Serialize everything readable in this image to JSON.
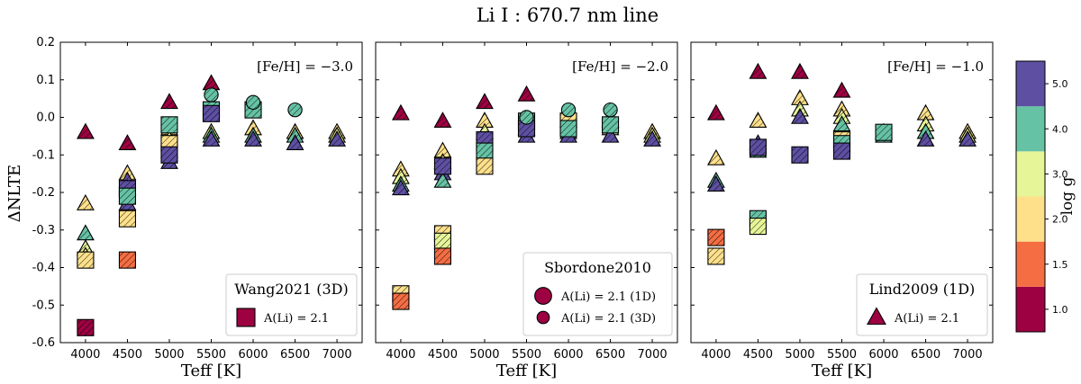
{
  "figure": {
    "title": "Li I : 670.7 nm line",
    "ylabel": "ΔNLTE",
    "xlabel": "Teff [K]"
  },
  "colorbar": {
    "label": "log g",
    "ticks": [
      "1.0",
      "1.5",
      "2.0",
      "3.0",
      "4.0",
      "5.0"
    ],
    "colors": [
      "#9e0142",
      "#f46d43",
      "#fee08b",
      "#e6f598",
      "#66c2a5",
      "#5e4fa2"
    ]
  },
  "chart_data": [
    {
      "type": "scatter",
      "panel": "left",
      "annotation": "[Fe/H] = −3.0",
      "xlabel": "Teff [K]",
      "ylabel": "ΔNLTE",
      "xlim": [
        3700,
        7300
      ],
      "ylim": [
        -0.6,
        0.2
      ],
      "x_ticks": [
        4000,
        4500,
        5000,
        5500,
        6000,
        6500,
        7000
      ],
      "y_ticks": [
        -0.6,
        -0.5,
        -0.4,
        -0.3,
        -0.2,
        -0.1,
        0.0,
        0.1,
        0.2
      ],
      "legend": {
        "title": "Wang2021 (3D)",
        "entries": [
          {
            "marker": "square",
            "label": "A(Li) = 2.1"
          }
        ]
      },
      "series": [
        {
          "marker": "triangle",
          "points": [
            {
              "x": 4000,
              "y": -0.04,
              "c": 0
            },
            {
              "x": 4000,
              "y": -0.23,
              "c": 2
            },
            {
              "x": 4000,
              "y": -0.31,
              "c": 4
            },
            {
              "x": 4000,
              "y": -0.35,
              "c": 3
            },
            {
              "x": 4000,
              "y": -0.37,
              "c": 2
            },
            {
              "x": 4500,
              "y": -0.07,
              "c": 0
            },
            {
              "x": 4500,
              "y": -0.15,
              "c": 2
            },
            {
              "x": 4500,
              "y": -0.17,
              "c": 5
            },
            {
              "x": 4500,
              "y": -0.19,
              "c": 4
            },
            {
              "x": 4500,
              "y": -0.23,
              "c": 5
            },
            {
              "x": 5000,
              "y": 0.04,
              "c": 0
            },
            {
              "x": 5000,
              "y": -0.03,
              "c": 2
            },
            {
              "x": 5000,
              "y": -0.06,
              "c": 3
            },
            {
              "x": 5000,
              "y": -0.09,
              "c": 4
            },
            {
              "x": 5000,
              "y": -0.12,
              "c": 5
            },
            {
              "x": 5500,
              "y": 0.09,
              "c": 0
            },
            {
              "x": 5500,
              "y": -0.04,
              "c": 3
            },
            {
              "x": 5500,
              "y": -0.05,
              "c": 4
            },
            {
              "x": 5500,
              "y": -0.06,
              "c": 5
            },
            {
              "x": 6000,
              "y": -0.03,
              "c": 2
            },
            {
              "x": 6000,
              "y": -0.05,
              "c": 4
            },
            {
              "x": 6000,
              "y": -0.06,
              "c": 5
            },
            {
              "x": 6500,
              "y": -0.04,
              "c": 2
            },
            {
              "x": 6500,
              "y": -0.05,
              "c": 4
            },
            {
              "x": 6500,
              "y": -0.07,
              "c": 5
            },
            {
              "x": 7000,
              "y": -0.04,
              "c": 2
            },
            {
              "x": 7000,
              "y": -0.05,
              "c": 3
            },
            {
              "x": 7000,
              "y": -0.06,
              "c": 5
            }
          ]
        },
        {
          "marker": "square",
          "points": [
            {
              "x": 4000,
              "y": -0.38,
              "c": 2
            },
            {
              "x": 4000,
              "y": -0.56,
              "c": 0
            },
            {
              "x": 4500,
              "y": -0.19,
              "c": 5
            },
            {
              "x": 4500,
              "y": -0.21,
              "c": 4
            },
            {
              "x": 4500,
              "y": -0.27,
              "c": 2
            },
            {
              "x": 4500,
              "y": -0.38,
              "c": 1
            },
            {
              "x": 5000,
              "y": -0.02,
              "c": 4
            },
            {
              "x": 5000,
              "y": -0.07,
              "c": 2
            },
            {
              "x": 5000,
              "y": -0.1,
              "c": 5
            },
            {
              "x": 5500,
              "y": 0.02,
              "c": 4
            },
            {
              "x": 5500,
              "y": 0.01,
              "c": 5
            },
            {
              "x": 6000,
              "y": 0.02,
              "c": 4
            }
          ]
        },
        {
          "marker": "circle",
          "points": [
            {
              "x": 5500,
              "y": 0.06,
              "c": 4
            },
            {
              "x": 6000,
              "y": 0.04,
              "c": 4
            },
            {
              "x": 6500,
              "y": 0.02,
              "c": 4
            }
          ]
        }
      ]
    },
    {
      "type": "scatter",
      "panel": "middle",
      "annotation": "[Fe/H] = −2.0",
      "xlabel": "Teff [K]",
      "xlim": [
        3700,
        7300
      ],
      "ylim": [
        -0.6,
        0.2
      ],
      "x_ticks": [
        4000,
        4500,
        5000,
        5500,
        6000,
        6500,
        7000
      ],
      "legend": {
        "title": "Sbordone2010",
        "entries": [
          {
            "marker": "circle-large",
            "label": "A(Li) = 2.1 (1D)"
          },
          {
            "marker": "circle",
            "label": "A(Li) = 2.1 (3D)"
          }
        ]
      },
      "series": [
        {
          "marker": "triangle",
          "points": [
            {
              "x": 4000,
              "y": 0.01,
              "c": 0
            },
            {
              "x": 4000,
              "y": -0.14,
              "c": 2
            },
            {
              "x": 4000,
              "y": -0.16,
              "c": 3
            },
            {
              "x": 4000,
              "y": -0.18,
              "c": 4
            },
            {
              "x": 4000,
              "y": -0.19,
              "c": 5
            },
            {
              "x": 4500,
              "y": -0.01,
              "c": 0
            },
            {
              "x": 4500,
              "y": -0.09,
              "c": 2
            },
            {
              "x": 4500,
              "y": -0.12,
              "c": 3
            },
            {
              "x": 4500,
              "y": -0.15,
              "c": 5
            },
            {
              "x": 4500,
              "y": -0.17,
              "c": 4
            },
            {
              "x": 5000,
              "y": 0.04,
              "c": 0
            },
            {
              "x": 5000,
              "y": -0.01,
              "c": 2
            },
            {
              "x": 5000,
              "y": -0.04,
              "c": 3
            },
            {
              "x": 5000,
              "y": -0.07,
              "c": 4
            },
            {
              "x": 5500,
              "y": 0.06,
              "c": 0
            },
            {
              "x": 5500,
              "y": -0.03,
              "c": 3
            },
            {
              "x": 5500,
              "y": -0.05,
              "c": 5
            },
            {
              "x": 6000,
              "y": -0.01,
              "c": 2
            },
            {
              "x": 6000,
              "y": -0.04,
              "c": 4
            },
            {
              "x": 6000,
              "y": -0.05,
              "c": 5
            },
            {
              "x": 6500,
              "y": -0.01,
              "c": 2
            },
            {
              "x": 6500,
              "y": -0.03,
              "c": 3
            },
            {
              "x": 6500,
              "y": -0.05,
              "c": 5
            },
            {
              "x": 7000,
              "y": -0.04,
              "c": 2
            },
            {
              "x": 7000,
              "y": -0.05,
              "c": 3
            },
            {
              "x": 7000,
              "y": -0.06,
              "c": 5
            }
          ]
        },
        {
          "marker": "square",
          "points": [
            {
              "x": 4000,
              "y": -0.47,
              "c": 2
            },
            {
              "x": 4000,
              "y": -0.49,
              "c": 1
            },
            {
              "x": 4500,
              "y": -0.13,
              "c": 5
            },
            {
              "x": 4500,
              "y": -0.31,
              "c": 2
            },
            {
              "x": 4500,
              "y": -0.33,
              "c": 3
            },
            {
              "x": 4500,
              "y": -0.37,
              "c": 1
            },
            {
              "x": 5000,
              "y": -0.06,
              "c": 5
            },
            {
              "x": 5000,
              "y": -0.09,
              "c": 4
            },
            {
              "x": 5000,
              "y": -0.13,
              "c": 2
            },
            {
              "x": 5500,
              "y": -0.01,
              "c": 4
            },
            {
              "x": 5500,
              "y": -0.03,
              "c": 5
            },
            {
              "x": 6000,
              "y": -0.01,
              "c": 2
            },
            {
              "x": 6000,
              "y": -0.03,
              "c": 4
            },
            {
              "x": 6500,
              "y": -0.02,
              "c": 4
            }
          ]
        },
        {
          "marker": "circle",
          "points": [
            {
              "x": 5500,
              "y": 0.0,
              "c": 4
            },
            {
              "x": 6000,
              "y": 0.02,
              "c": 4
            },
            {
              "x": 6500,
              "y": 0.02,
              "c": 4
            }
          ]
        }
      ]
    },
    {
      "type": "scatter",
      "panel": "right",
      "annotation": "[Fe/H] = −1.0",
      "xlabel": "Teff [K]",
      "xlim": [
        3700,
        7300
      ],
      "ylim": [
        -0.6,
        0.2
      ],
      "x_ticks": [
        4000,
        4500,
        5000,
        5500,
        6000,
        6500,
        7000
      ],
      "legend": {
        "title": "Lind2009 (1D)",
        "entries": [
          {
            "marker": "triangle",
            "label": "A(Li) = 2.1"
          }
        ]
      },
      "series": [
        {
          "marker": "triangle",
          "points": [
            {
              "x": 4000,
              "y": 0.01,
              "c": 0
            },
            {
              "x": 4000,
              "y": -0.11,
              "c": 2
            },
            {
              "x": 4000,
              "y": -0.17,
              "c": 4
            },
            {
              "x": 4000,
              "y": -0.18,
              "c": 5
            },
            {
              "x": 4500,
              "y": 0.12,
              "c": 0
            },
            {
              "x": 4500,
              "y": -0.01,
              "c": 2
            },
            {
              "x": 4500,
              "y": -0.07,
              "c": 5
            },
            {
              "x": 4500,
              "y": -0.09,
              "c": 4
            },
            {
              "x": 5000,
              "y": 0.12,
              "c": 0
            },
            {
              "x": 5000,
              "y": 0.05,
              "c": 2
            },
            {
              "x": 5000,
              "y": 0.02,
              "c": 3
            },
            {
              "x": 5000,
              "y": 0.0,
              "c": 5
            },
            {
              "x": 5500,
              "y": 0.07,
              "c": 0
            },
            {
              "x": 5500,
              "y": 0.02,
              "c": 2
            },
            {
              "x": 5500,
              "y": 0.0,
              "c": 3
            },
            {
              "x": 5500,
              "y": -0.02,
              "c": 4
            },
            {
              "x": 6000,
              "y": -0.04,
              "c": 2
            },
            {
              "x": 6000,
              "y": -0.05,
              "c": 4
            },
            {
              "x": 6500,
              "y": 0.01,
              "c": 2
            },
            {
              "x": 6500,
              "y": -0.02,
              "c": 3
            },
            {
              "x": 6500,
              "y": -0.04,
              "c": 4
            },
            {
              "x": 6500,
              "y": -0.06,
              "c": 5
            },
            {
              "x": 7000,
              "y": -0.04,
              "c": 2
            },
            {
              "x": 7000,
              "y": -0.05,
              "c": 3
            },
            {
              "x": 7000,
              "y": -0.06,
              "c": 5
            }
          ]
        },
        {
          "marker": "square",
          "points": [
            {
              "x": 4000,
              "y": -0.32,
              "c": 1
            },
            {
              "x": 4000,
              "y": -0.37,
              "c": 2
            },
            {
              "x": 4500,
              "y": -0.08,
              "c": 5
            },
            {
              "x": 4500,
              "y": -0.27,
              "c": 4
            },
            {
              "x": 4500,
              "y": -0.29,
              "c": 3
            },
            {
              "x": 5000,
              "y": -0.1,
              "c": 5
            },
            {
              "x": 5500,
              "y": -0.06,
              "c": 2
            },
            {
              "x": 5500,
              "y": -0.07,
              "c": 4
            },
            {
              "x": 5500,
              "y": -0.09,
              "c": 5
            },
            {
              "x": 6000,
              "y": -0.04,
              "c": 4
            }
          ]
        }
      ]
    }
  ]
}
